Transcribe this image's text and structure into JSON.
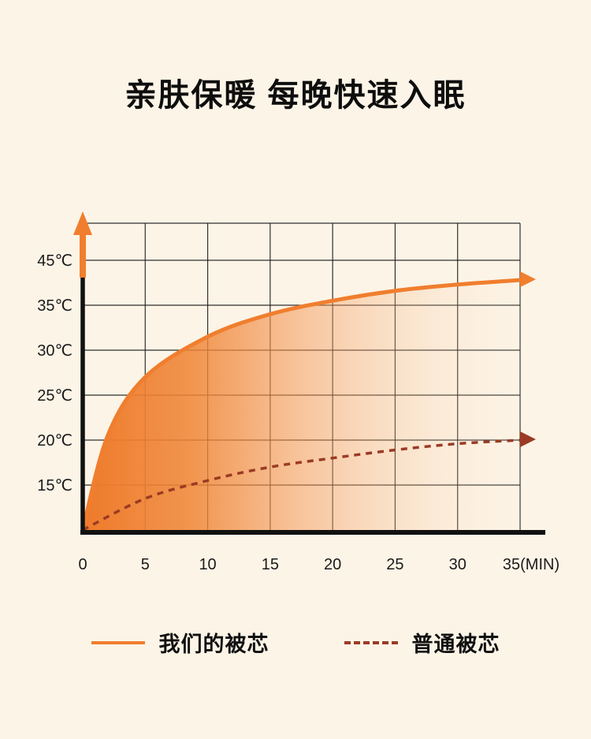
{
  "page": {
    "title": "亲肤保暖 每晚快速入眠",
    "background_color": "#FCF4E7"
  },
  "chart_data": {
    "type": "line",
    "title": "亲肤保暖 每晚快速入眠",
    "xlabel": "",
    "ylabel": "",
    "grid": true,
    "legend_position": "bottom",
    "x_ticks": [
      "0",
      "5",
      "10",
      "15",
      "20",
      "25",
      "30",
      "35(MIN)"
    ],
    "x_tick_values": [
      0,
      5,
      10,
      15,
      20,
      25,
      30,
      35
    ],
    "y_ticks": [
      "45℃",
      "35℃",
      "30℃",
      "25℃",
      "20℃",
      "15℃"
    ],
    "y_tick_values": [
      45,
      35,
      30,
      25,
      20,
      15
    ],
    "x_range": [
      0,
      35
    ],
    "y_baseline_value": 10,
    "series": [
      {
        "name": "我们的被芯",
        "style": "solid",
        "color": "#F07E2E",
        "fill": "gradient",
        "x": [
          0,
          2,
          5,
          10,
          15,
          20,
          25,
          30,
          35
        ],
        "y": [
          10,
          20.5,
          27,
          31.5,
          34,
          35.5,
          36.6,
          37.3,
          37.8
        ]
      },
      {
        "name": "普通被芯",
        "style": "dashed",
        "color": "#9B3B24",
        "x": [
          0,
          5,
          10,
          15,
          20,
          25,
          30,
          35
        ],
        "y": [
          10,
          13.5,
          15.5,
          17,
          18,
          18.9,
          19.6,
          20
        ]
      }
    ]
  },
  "legend": {
    "items": [
      {
        "label": "我们的被芯",
        "style": "solid",
        "color": "#F07E2E"
      },
      {
        "label": "普通被芯",
        "style": "dashed",
        "color": "#9B3B24"
      }
    ]
  },
  "colors": {
    "background": "#FCF4E7",
    "grid": "#1A1A1A",
    "axis": "#111111",
    "accent_orange": "#F07E2E",
    "accent_brown": "#9B3B24",
    "text": "#111111"
  }
}
